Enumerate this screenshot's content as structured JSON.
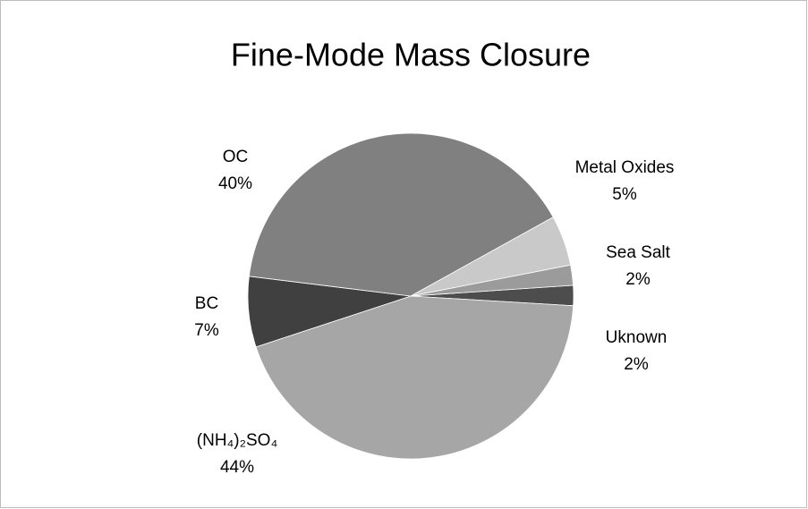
{
  "chart_data": {
    "type": "pie",
    "title": "Fine-Mode Mass Closure",
    "categories": [
      "Uknown",
      "(NH₄)₂SO₄",
      "BC",
      "OC",
      "Metal Oxides",
      "Sea Salt"
    ],
    "values": [
      2,
      44,
      7,
      40,
      5,
      2
    ],
    "value_labels": [
      "2%",
      "44%",
      "7%",
      "40%",
      "5%",
      "2%"
    ],
    "colors": [
      "#4d4d4d",
      "#a6a6a6",
      "#404040",
      "#808080",
      "#c9c9c9",
      "#9b9b9b"
    ]
  }
}
